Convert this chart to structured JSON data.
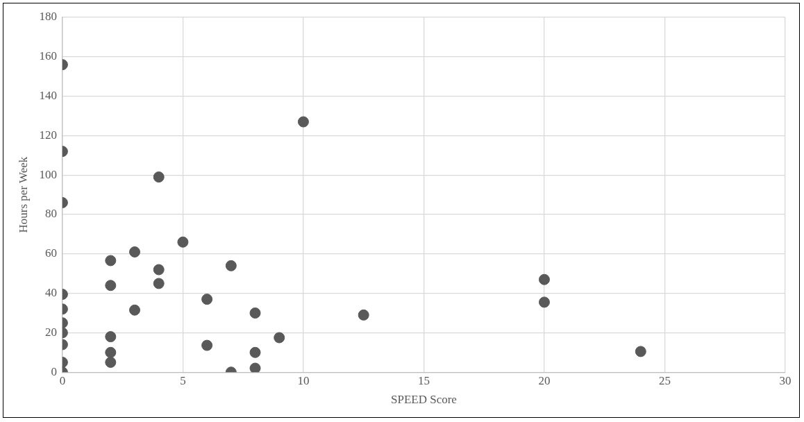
{
  "chart_data": {
    "type": "scatter",
    "xlabel": "SPEED Score",
    "ylabel": "Hours per Week",
    "x": [
      0,
      0,
      0,
      0,
      0,
      0,
      0,
      0,
      0,
      0,
      2,
      2,
      2,
      2,
      2,
      3,
      3,
      4,
      4,
      4,
      5,
      6,
      6,
      7,
      7,
      8,
      8,
      8,
      9,
      10,
      12.5,
      20,
      20,
      24
    ],
    "series": [
      {
        "color": "#595959",
        "values": [
          156,
          112,
          86,
          39.5,
          32,
          25,
          20,
          14,
          5,
          0,
          56.6,
          44,
          18,
          10,
          5,
          61,
          31.5,
          99,
          52,
          45,
          66,
          37,
          13.6,
          54,
          0,
          30,
          10,
          2,
          17.5,
          127,
          29,
          47,
          35.5,
          10.5
        ]
      }
    ],
    "xlim": [
      0,
      30
    ],
    "xticks": [
      0,
      5,
      10,
      15,
      20,
      25,
      30
    ],
    "ylim": [
      0,
      180
    ],
    "yticks": [
      0,
      20,
      40,
      60,
      80,
      100,
      120,
      140,
      160,
      180
    ],
    "grid": true,
    "legend": false,
    "marker": "circle"
  }
}
